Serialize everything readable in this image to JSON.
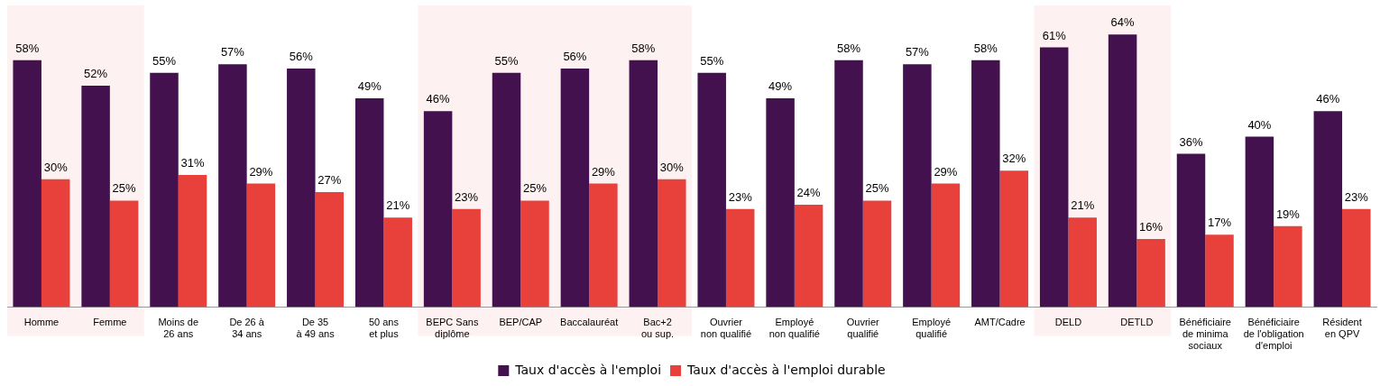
{
  "chart_data": {
    "type": "bar",
    "categories": [
      "Homme",
      "Femme",
      "Moins de\n26 ans",
      "De 26 à\n34 ans",
      "De 35\nà 49 ans",
      "50 ans\net plus",
      "BEPC Sans\ndiplôme",
      "BEP/CAP",
      "Baccalauréat",
      "Bac+2\nou sup.",
      "Ouvrier\nnon qualifié",
      "Employé\nnon qualifié",
      "Ouvrier\nqualifié",
      "Employé\nqualifié",
      "AMT/Cadre",
      "DELD",
      "DETLD",
      "Bénéficiaire\nde minima\nsociaux",
      "Bénéficiaire\nde l'obligation\nd'emploi",
      "Résident\nen QPV"
    ],
    "series": [
      {
        "name": "Taux d'accès à l'emploi",
        "color": "#44114f",
        "values": [
          58,
          52,
          55,
          57,
          56,
          49,
          46,
          55,
          56,
          58,
          55,
          49,
          58,
          57,
          58,
          61,
          64,
          36,
          40,
          46
        ],
        "value_labels": [
          "58%",
          "52%",
          "55%",
          "57%",
          "56%",
          "49%",
          "46%",
          "55%",
          "56%",
          "58%",
          "55%",
          "49%",
          "58%",
          "57%",
          "58%",
          "61%",
          "64%",
          "36%",
          "40%",
          "46%"
        ]
      },
      {
        "name": "Taux d'accès à l'emploi durable",
        "color": "#e8403a",
        "values": [
          30,
          25,
          31,
          29,
          27,
          21,
          23,
          25,
          29,
          30,
          23,
          24,
          25,
          29,
          32,
          21,
          16,
          17,
          19,
          23
        ],
        "value_labels": [
          "30%",
          "25%",
          "31%",
          "29%",
          "27%",
          "21%",
          "23%",
          "25%",
          "29%",
          "30%",
          "23%",
          "24%",
          "25%",
          "29%",
          "32%",
          "21%",
          "16%",
          "17%",
          "19%",
          "23%"
        ]
      }
    ],
    "bands": [
      {
        "axis": "x",
        "from": "Homme",
        "to": "Femme",
        "color": "#fdf1f1"
      },
      {
        "axis": "x",
        "from": "BEPC Sans\ndiplôme",
        "to": "Bac+2\nou sup.",
        "color": "#fdf1f1"
      },
      {
        "axis": "x",
        "from": "DELD",
        "to": "DETLD",
        "color": "#fdf1f1"
      }
    ],
    "legend": "bottom",
    "grid": false
  }
}
